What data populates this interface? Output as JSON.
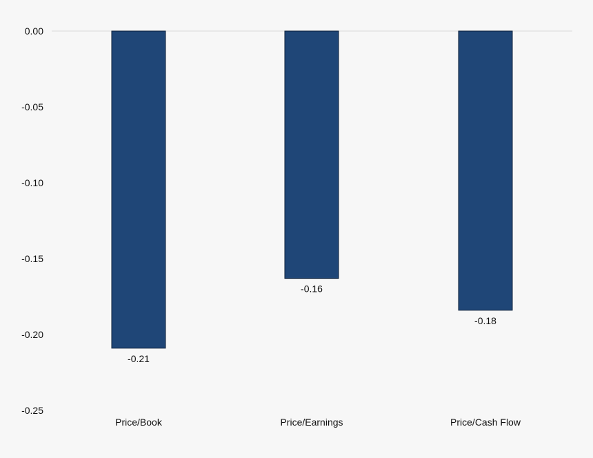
{
  "chart_data": {
    "type": "bar",
    "categories": [
      "Price/Book",
      "Price/Earnings",
      "Price/Cash Flow"
    ],
    "values": [
      -0.209,
      -0.163,
      -0.184
    ],
    "data_labels": [
      "-0.21",
      "-0.16",
      "-0.18"
    ],
    "yticks": [
      "0.00",
      "-0.05",
      "-0.10",
      "-0.15",
      "-0.20",
      "-0.25"
    ],
    "ylim": [
      -0.25,
      0
    ],
    "title": "",
    "xlabel": "",
    "ylabel": "",
    "grid": false,
    "bar_color": "#1f4677",
    "bar_stroke": "#0b1f3a",
    "zero_line_color": "#d9d9d9"
  }
}
